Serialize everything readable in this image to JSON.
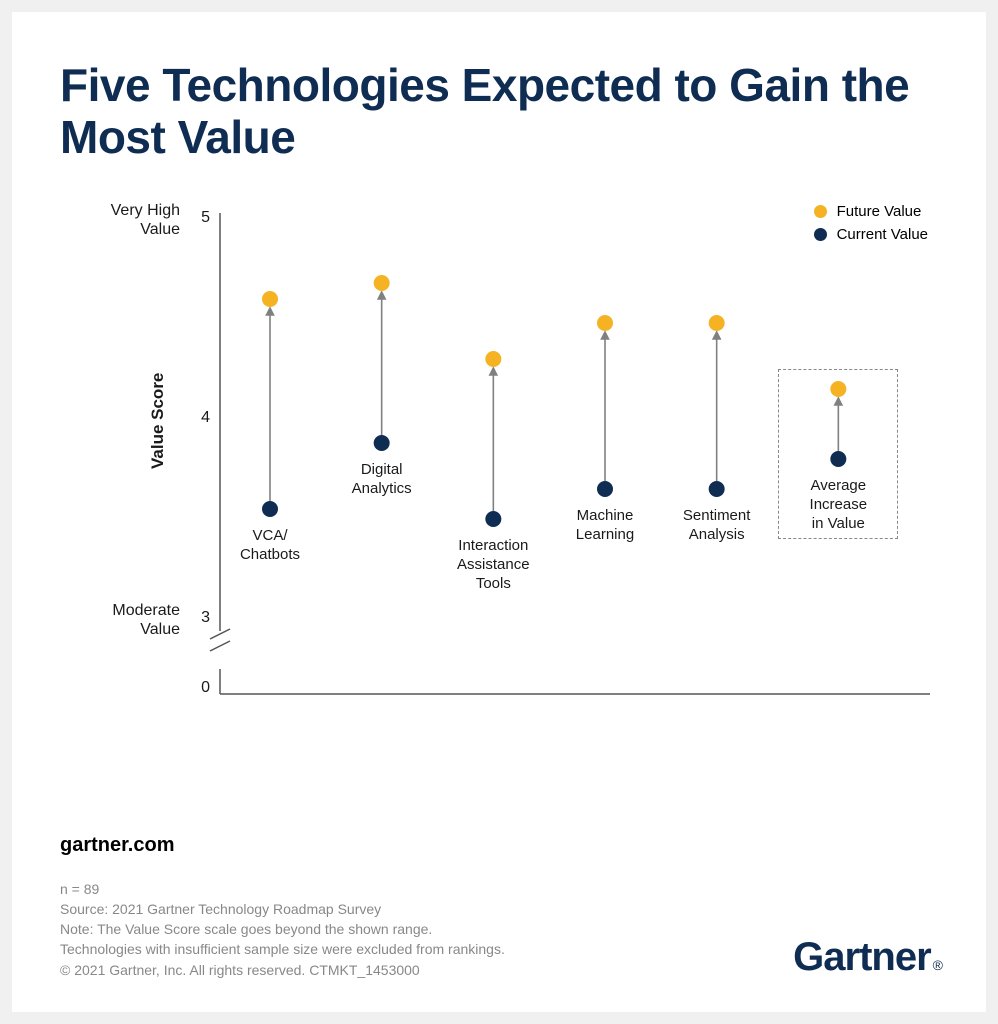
{
  "colors": {
    "title": "#0f2d52",
    "text": "#1a1a1a",
    "muted": "#8a8a8a",
    "axis": "#555555",
    "future": "#f5b324",
    "current": "#0f2d52",
    "arrow": "#808080",
    "dash": "#888888",
    "background": "#ffffff"
  },
  "title": "Five Technologies Expected to Gain the Most Value",
  "chart": {
    "type": "dot-arrow",
    "y_axis_title": "Value Score",
    "y_top_label": "Very High\nValue",
    "y_bottom_label": "Moderate\nValue",
    "ticks": [
      {
        "value": 5,
        "label": "5"
      },
      {
        "value": 4,
        "label": "4"
      },
      {
        "value": 3,
        "label": "3"
      },
      {
        "value": 0,
        "label": "0"
      }
    ],
    "ylim_display": [
      3,
      5
    ],
    "marker_radius": 8,
    "arrow_color": "#808080",
    "arrow_width": 1.6,
    "series": [
      {
        "label": "VCA/\nChatbots",
        "current": 3.55,
        "future": 4.6
      },
      {
        "label": "Digital\nAnalytics",
        "current": 3.88,
        "future": 4.68
      },
      {
        "label": "Interaction\nAssistance\nTools",
        "current": 3.5,
        "future": 4.3
      },
      {
        "label": "Machine\nLearning",
        "current": 3.65,
        "future": 4.48
      },
      {
        "label": "Sentiment\nAnalysis",
        "current": 3.65,
        "future": 4.48
      }
    ],
    "average": {
      "label": "Average\nIncrease\nin Value",
      "current": 3.8,
      "future": 4.15
    },
    "legend": {
      "future": "Future Value",
      "current": "Current Value"
    }
  },
  "footer": {
    "site": "gartner.com",
    "lines": [
      "n = 89",
      "Source: 2021 Gartner Technology Roadmap Survey",
      "Note: The Value Score scale goes beyond the shown range.",
      "Technologies with insufficient sample size were excluded from rankings.",
      "© 2021 Gartner, Inc. All rights reserved. CTMKT_1453000"
    ],
    "logo": "Gartner"
  }
}
